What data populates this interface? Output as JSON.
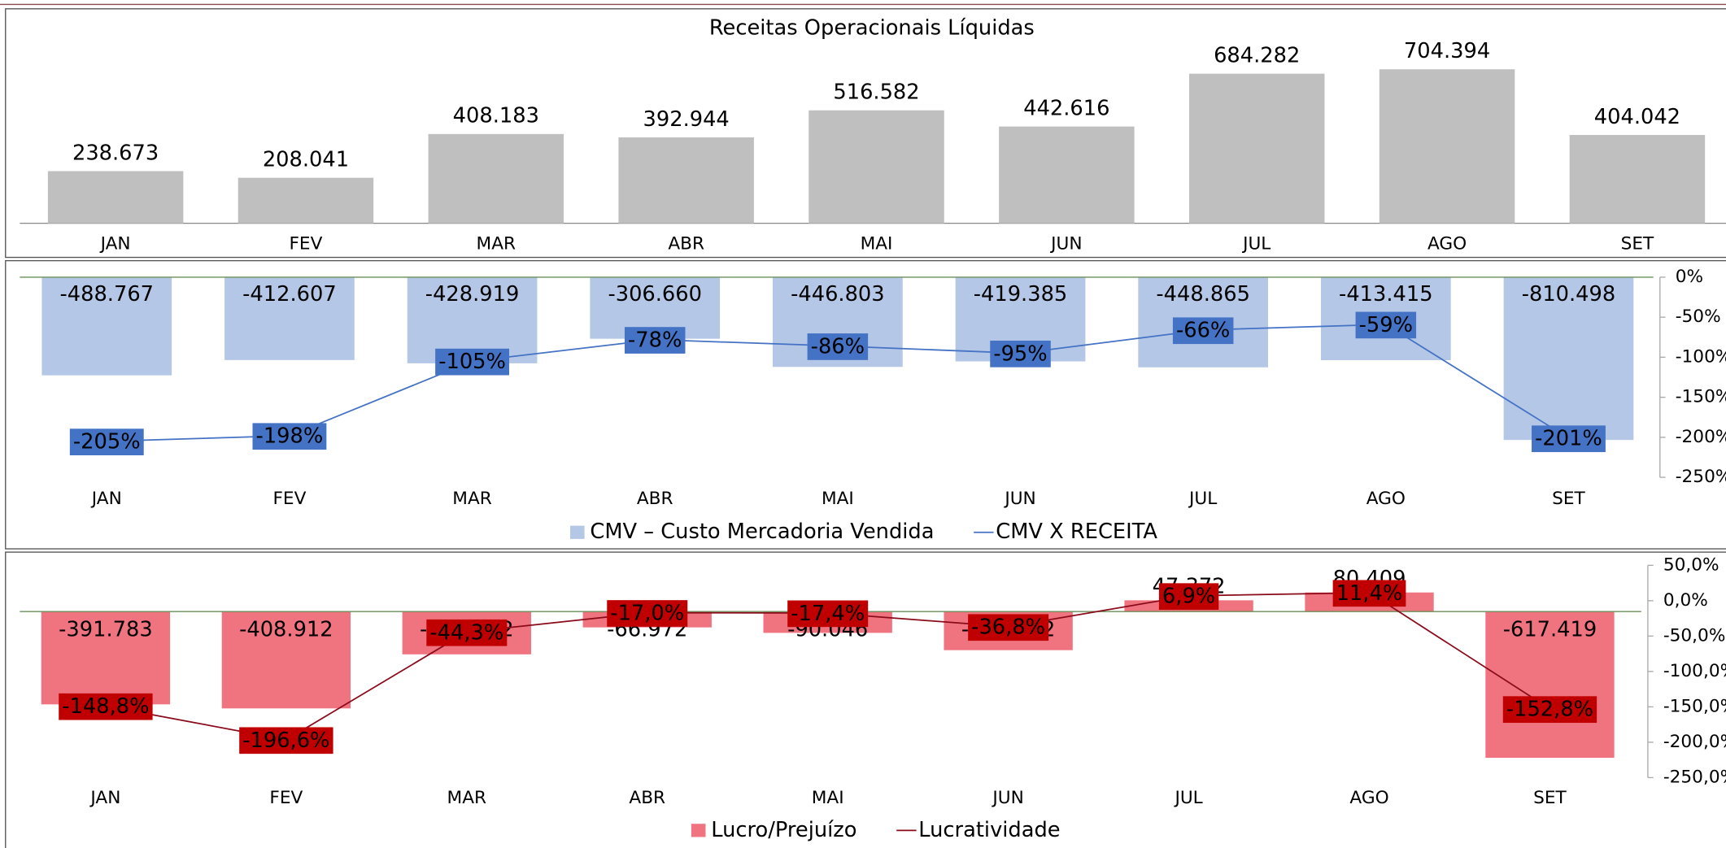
{
  "chart_data": [
    {
      "type": "bar",
      "title": "Receitas Operacionais Líquidas",
      "categories": [
        "JAN",
        "FEV",
        "MAR",
        "ABR",
        "MAI",
        "JUN",
        "JUL",
        "AGO",
        "SET"
      ],
      "values": [
        238673,
        208041,
        408183,
        392944,
        516582,
        442616,
        684282,
        704394,
        404042
      ],
      "value_labels": [
        "238.673",
        "208.041",
        "408.183",
        "392.944",
        "516.582",
        "442.616",
        "684.282",
        "704.394",
        "404.042"
      ],
      "color": "#bfbfbf"
    },
    {
      "type": "bar_line",
      "categories": [
        "JAN",
        "FEV",
        "MAR",
        "ABR",
        "MAI",
        "JUN",
        "JUL",
        "AGO",
        "SET"
      ],
      "series": [
        {
          "name": "CMV – Custo Mercadoria Vendida",
          "color": "#b4c7e7",
          "values": [
            -488767,
            -412607,
            -428919,
            -306660,
            -446803,
            -419385,
            -448865,
            -413415,
            -810498
          ],
          "value_labels": [
            "-488.767",
            "-412.607",
            "-428.919",
            "-306.660",
            "-446.803",
            "-419.385",
            "-448.865",
            "-413.415",
            "-810.498"
          ]
        },
        {
          "name": "CMV X RECEITA",
          "color": "#4472c4",
          "axis": "y2",
          "values": [
            -205,
            -198,
            -105,
            -78,
            -86,
            -95,
            -66,
            -59,
            -201
          ],
          "value_labels": [
            "-205%",
            "-198%",
            "-105%",
            "-78%",
            "-86%",
            "-95%",
            "-66%",
            "-59%",
            "-201%"
          ]
        }
      ],
      "y2lim": [
        -250,
        0
      ],
      "y2ticks": [
        {
          "value": 0,
          "label": "0%"
        },
        {
          "value": -50,
          "label": "-50%"
        },
        {
          "value": -100,
          "label": "-100%"
        },
        {
          "value": -150,
          "label": "-150%"
        },
        {
          "value": -200,
          "label": "-200%"
        },
        {
          "value": -250,
          "label": "-250%"
        }
      ]
    },
    {
      "type": "bar_line",
      "categories": [
        "JAN",
        "FEV",
        "MAR",
        "ABR",
        "MAI",
        "JUN",
        "JUL",
        "AGO",
        "SET"
      ],
      "series": [
        {
          "name": "Lucro/Prejuízo",
          "color": "#f07480",
          "values": [
            -391783,
            -408912,
            -180732,
            -66972,
            -90046,
            -163082,
            47372,
            80409,
            -617419
          ],
          "value_labels": [
            "-391.783",
            "-408.912",
            "-180.732",
            "-66.972",
            "-90.046",
            "-163.082",
            "47.372",
            "80.409",
            "-617.419"
          ]
        },
        {
          "name": "Lucratividade",
          "color": "#8b0a1a",
          "axis": "y2",
          "values": [
            -148.8,
            -196.6,
            -44.3,
            -17.0,
            -17.4,
            -36.8,
            6.9,
            11.4,
            -152.8
          ],
          "value_labels": [
            "-148,8%",
            "-196,6%",
            "-44,3%",
            "-17,0%",
            "-17,4%",
            "-36,8%",
            "6,9%",
            "11,4%",
            "-152,8%"
          ]
        }
      ],
      "y2lim": [
        -250,
        50
      ],
      "y2ticks": [
        {
          "value": 50,
          "label": "50,0%"
        },
        {
          "value": 0,
          "label": "0,0%"
        },
        {
          "value": -50,
          "label": "-50,0%"
        },
        {
          "value": -100,
          "label": "-100,0%"
        },
        {
          "value": -150,
          "label": "-150,0%"
        },
        {
          "value": -200,
          "label": "-200,0%"
        },
        {
          "value": -250,
          "label": "-250,0%"
        }
      ]
    }
  ]
}
